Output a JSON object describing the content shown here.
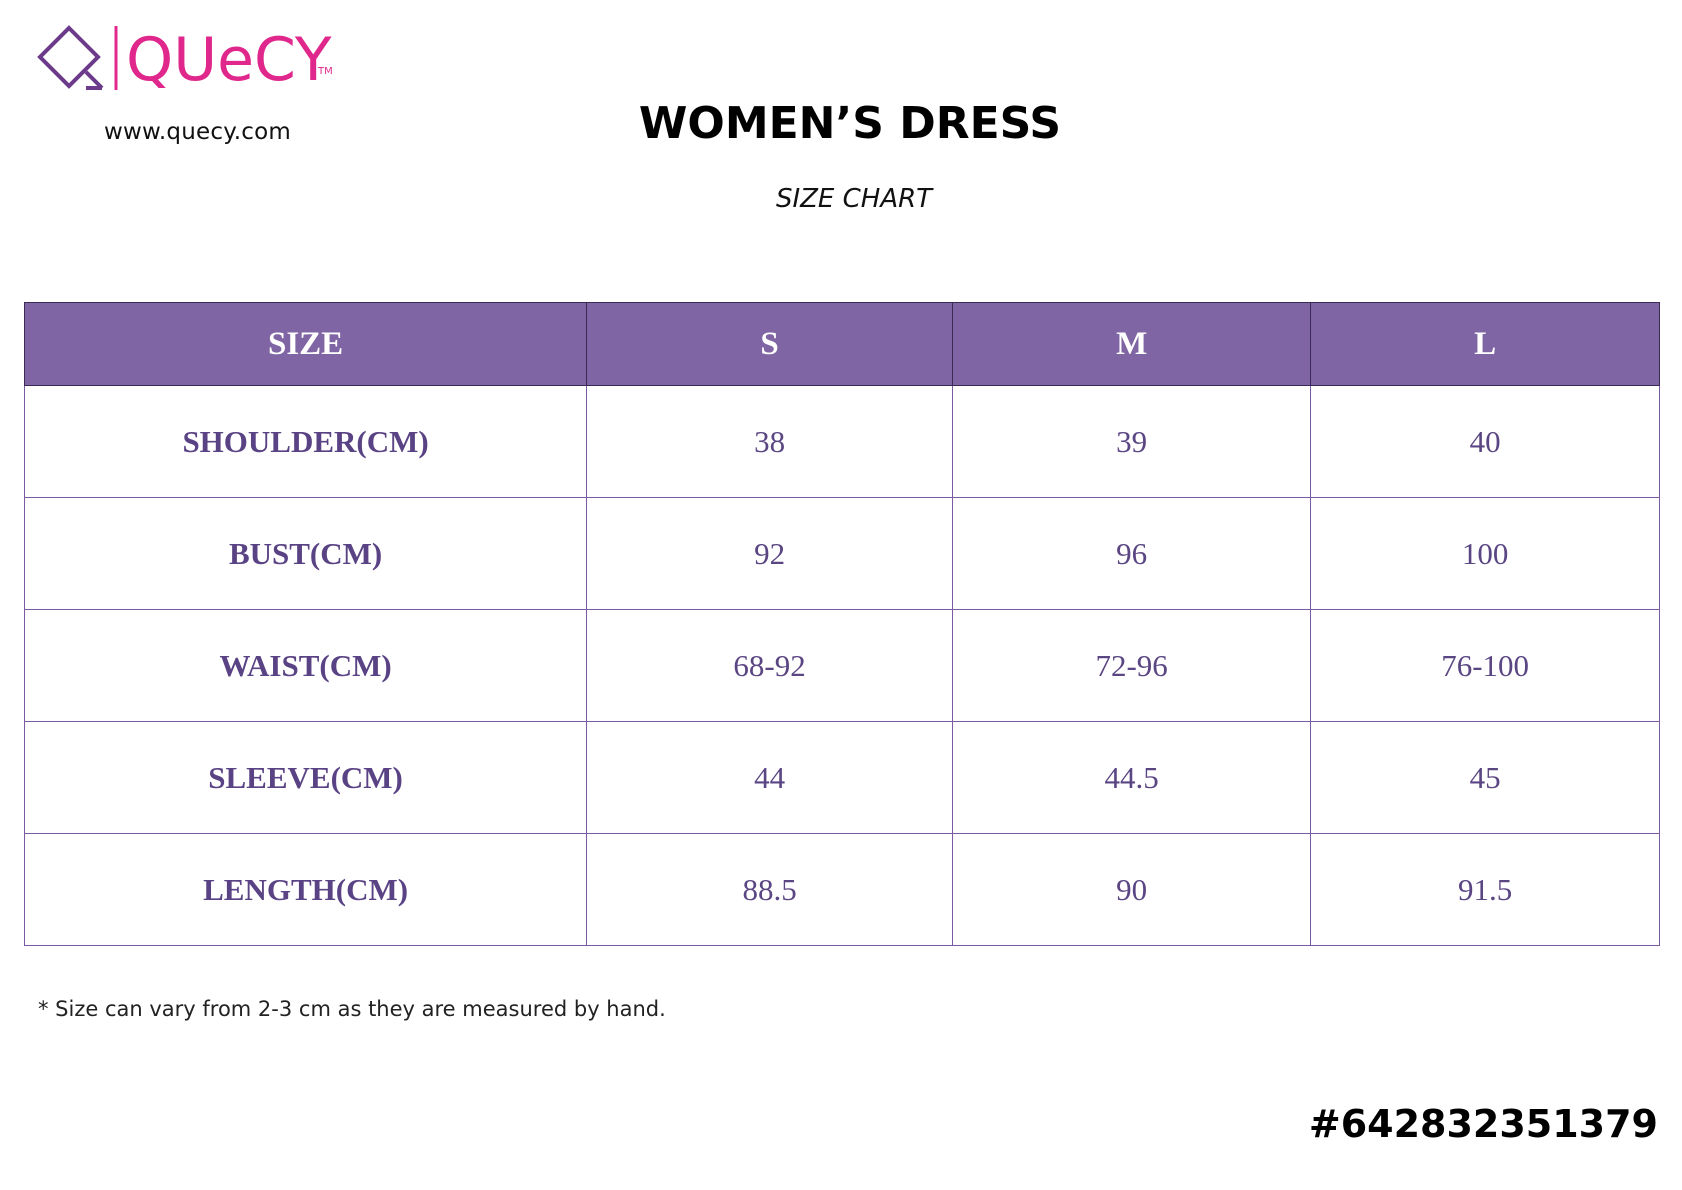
{
  "brand": {
    "name": "QUeCY",
    "trademark": "TM",
    "url": "www.quecy.com",
    "colors": {
      "purple": "#6b3a8a",
      "pink": "#e0288c"
    }
  },
  "title": "WOMEN’S DRESS",
  "subtitle": "SIZE CHART",
  "table": {
    "header_color": "#8065a4",
    "headers": [
      "SIZE",
      "S",
      "M",
      "L"
    ],
    "rows": [
      {
        "label": "SHOULDER(CM)",
        "values": [
          "38",
          "39",
          "40"
        ]
      },
      {
        "label": "BUST(CM)",
        "values": [
          "92",
          "96",
          "100"
        ]
      },
      {
        "label": "WAIST(CM)",
        "values": [
          "68-92",
          "72-96",
          "76-100"
        ]
      },
      {
        "label": "SLEEVE(CM)",
        "values": [
          "44",
          "44.5",
          "45"
        ]
      },
      {
        "label": "LENGTH(CM)",
        "values": [
          "88.5",
          "90",
          "91.5"
        ]
      }
    ]
  },
  "note": "* Size can vary from 2-3 cm as they are measured by hand.",
  "product_code": "#642832351379"
}
